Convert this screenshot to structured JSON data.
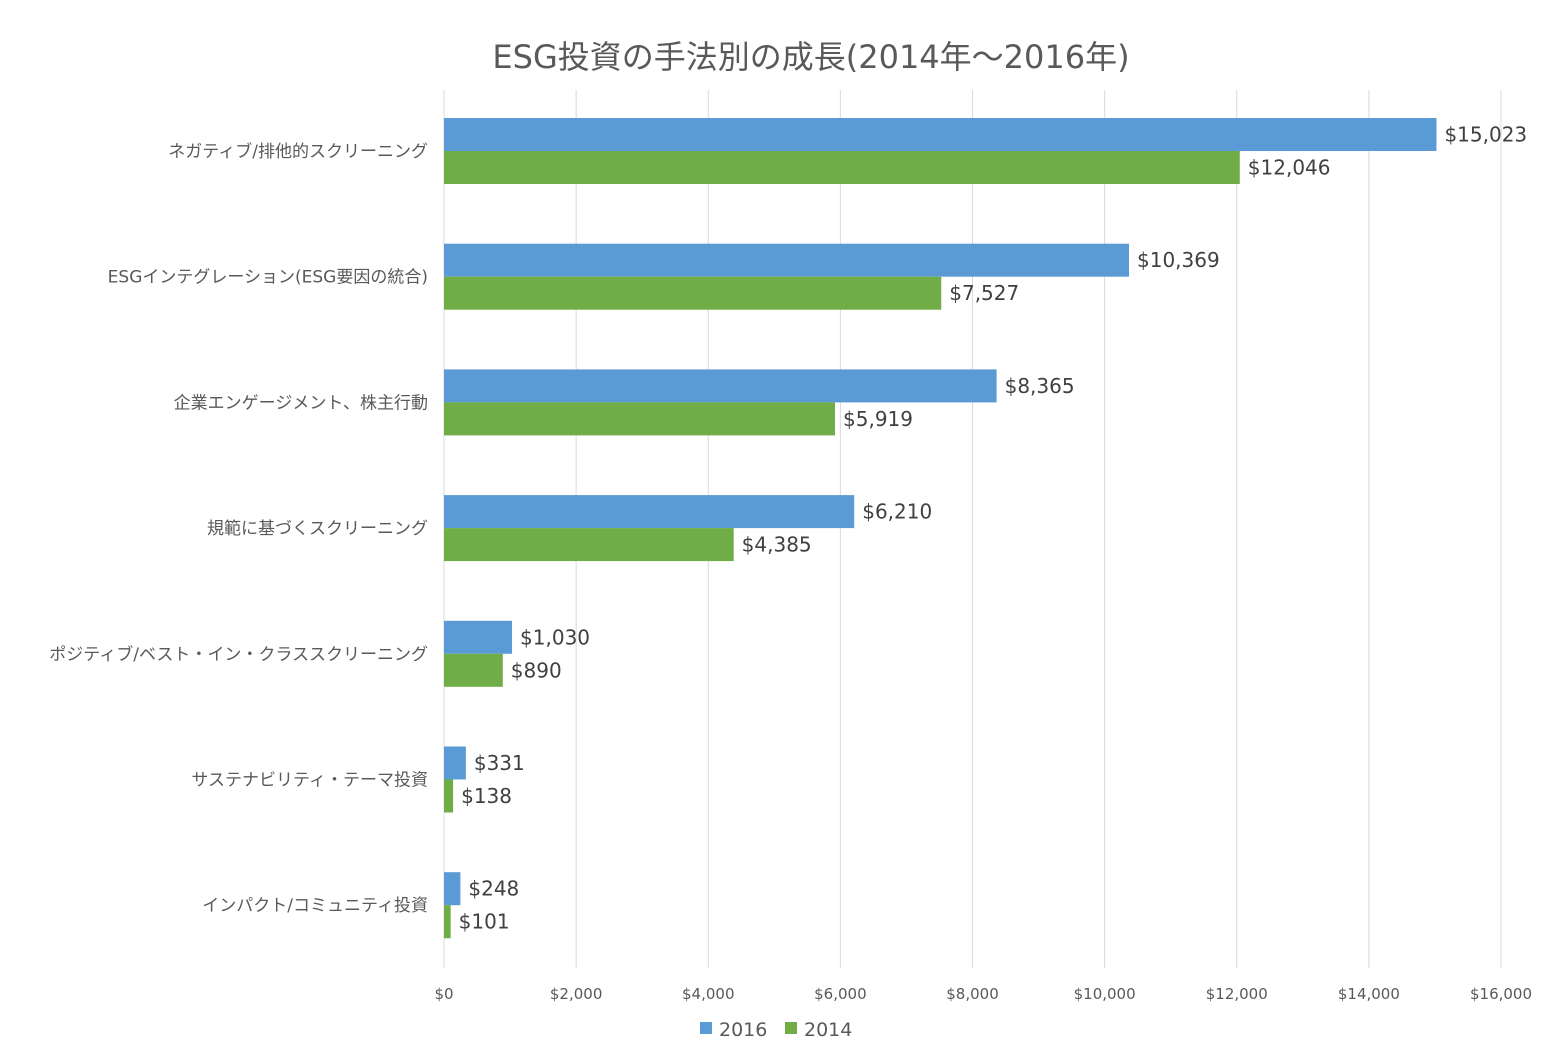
{
  "chart_data": {
    "type": "bar",
    "orientation": "horizontal",
    "title": "ESG投資の手法別の成長(2014年～2016年)",
    "xlabel": "",
    "ylabel": "",
    "xlim": [
      0,
      16000
    ],
    "grid": true,
    "legend_position": "bottom",
    "x_ticks": [
      0,
      2000,
      4000,
      6000,
      8000,
      10000,
      12000,
      14000,
      16000
    ],
    "x_tick_labels": [
      "$0",
      "$2,000",
      "$4,000",
      "$6,000",
      "$8,000",
      "$10,000",
      "$12,000",
      "$14,000",
      "$16,000"
    ],
    "categories": [
      "ネガティブ/排他的スクリーニング",
      "ESGインテグレーション(ESG要因の統合)",
      "企業エンゲージメント、株主行動",
      "規範に基づくスクリーニング",
      "ポジティブ/ベスト・イン・クラススクリーニング",
      "サステナビリティ・テーマ投資",
      "インパクト/コミュニティ投資"
    ],
    "series": [
      {
        "name": "2016",
        "color": "#5b9bd5",
        "values": [
          15023,
          10369,
          8365,
          6210,
          1030,
          331,
          248
        ],
        "labels": [
          "$15,023",
          "$10,369",
          "$8,365",
          "$6,210",
          "$1,030",
          "$331",
          "$248"
        ]
      },
      {
        "name": "2014",
        "color": "#70ad47",
        "values": [
          12046,
          7527,
          5919,
          4385,
          890,
          138,
          101
        ],
        "labels": [
          "$12,046",
          "$7,527",
          "$5,919",
          "$4,385",
          "$890",
          "$138",
          "$101"
        ]
      }
    ]
  }
}
